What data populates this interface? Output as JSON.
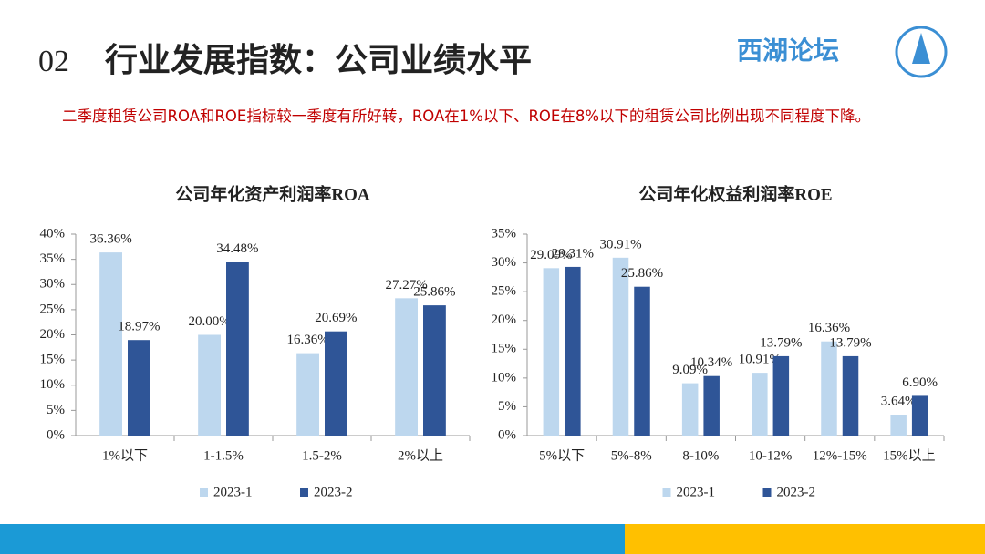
{
  "header": {
    "number": "02",
    "title": "行业发展指数：公司业绩水平",
    "logo": "西湖论坛"
  },
  "note": "二季度租赁公司ROA和ROE指标较一季度有所好转，ROA在1%以下、ROE在8%以下的租赁公司比例出现不同程度下降。",
  "chart_data": [
    {
      "type": "bar",
      "title": "公司年化资产利润率ROA",
      "categories": [
        "1%以下",
        "1-1.5%",
        "1.5-2%",
        "2%以上"
      ],
      "series": [
        {
          "name": "2023-1",
          "color": "#bdd7ee",
          "values": [
            36.36,
            20.0,
            16.36,
            27.27
          ],
          "value_labels": [
            "36.36%",
            "20.00%",
            "16.36%",
            "27.27%"
          ]
        },
        {
          "name": "2023-2",
          "color": "#2f5597",
          "values": [
            18.97,
            34.48,
            20.69,
            25.86
          ],
          "value_labels": [
            "18.97%",
            "34.48%",
            "20.69%",
            "25.86%"
          ]
        }
      ],
      "ylim": [
        0,
        40
      ],
      "yticks": [
        {
          "value": 0,
          "label": "0%"
        },
        {
          "value": 5,
          "label": "5%"
        },
        {
          "value": 10,
          "label": "10%"
        },
        {
          "value": 15,
          "label": "15%"
        },
        {
          "value": 20,
          "label": "20%"
        },
        {
          "value": 25,
          "label": "25%"
        },
        {
          "value": 30,
          "label": "30%"
        },
        {
          "value": 35,
          "label": "35%"
        },
        {
          "value": 40,
          "label": "40%"
        }
      ],
      "legend": "bottom"
    },
    {
      "type": "bar",
      "title": "公司年化权益利润率ROE",
      "categories": [
        "5%以下",
        "5%-8%",
        "8-10%",
        "10-12%",
        "12%-15%",
        "15%以上"
      ],
      "series": [
        {
          "name": "2023-1",
          "color": "#bdd7ee",
          "values": [
            29.09,
            30.91,
            9.09,
            10.91,
            16.36,
            3.64
          ],
          "value_labels": [
            "29.09%",
            "30.91%",
            "9.09%",
            "10.91%",
            "16.36%",
            "3.64%"
          ]
        },
        {
          "name": "2023-2",
          "color": "#2f5597",
          "values": [
            29.31,
            25.86,
            10.34,
            13.79,
            13.79,
            6.9
          ],
          "value_labels": [
            "29.31%",
            "25.86%",
            "10.34%",
            "13.79%",
            "13.79%",
            "6.90%"
          ]
        }
      ],
      "ylim": [
        0,
        35
      ],
      "yticks": [
        {
          "value": 0,
          "label": "0%"
        },
        {
          "value": 5,
          "label": "5%"
        },
        {
          "value": 10,
          "label": "10%"
        },
        {
          "value": 15,
          "label": "15%"
        },
        {
          "value": 20,
          "label": "20%"
        },
        {
          "value": 25,
          "label": "25%"
        },
        {
          "value": 30,
          "label": "30%"
        },
        {
          "value": 35,
          "label": "35%"
        }
      ],
      "legend": "bottom"
    }
  ]
}
